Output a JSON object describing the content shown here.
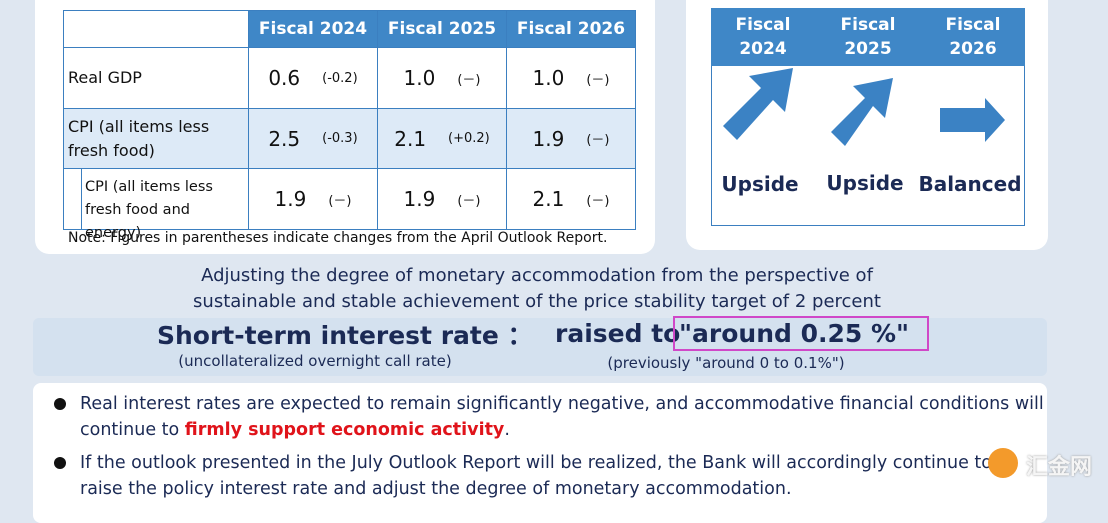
{
  "outlook_table": {
    "headers": [
      "Fiscal 2024",
      "Fiscal 2025",
      "Fiscal 2026"
    ],
    "rows": [
      {
        "label": "Real GDP",
        "cells": [
          [
            "0.6",
            "(-0.2)"
          ],
          [
            "1.0",
            "(－)"
          ],
          [
            "1.0",
            "(－)"
          ]
        ]
      },
      {
        "label": "CPI (all items less fresh food)",
        "cells": [
          [
            "2.5",
            "(-0.3)"
          ],
          [
            "2.1",
            "(+0.2)"
          ],
          [
            "1.9",
            "(－)"
          ]
        ]
      },
      {
        "label": "CPI (all items less fresh food and energy)",
        "cells": [
          [
            "1.9",
            "(－)"
          ],
          [
            "1.9",
            "(－)"
          ],
          [
            "2.1",
            "(－)"
          ]
        ]
      }
    ],
    "note": "Note: Figures in parentheses indicate changes from the April Outlook Report."
  },
  "risk_balance": {
    "headers": [
      "Fiscal 2024",
      "Fiscal 2025",
      "Fiscal 2026"
    ],
    "assessments": [
      "Upside",
      "Upside",
      "Balanced"
    ]
  },
  "policy_statement": [
    "Adjusting the degree of monetary accommodation from the perspective of",
    "sustainable and stable achievement of the price stability target of 2 percent"
  ],
  "interest_rate": {
    "title": "Short-term interest rate ：",
    "subtitle": "(uncollateralized overnight call rate)",
    "prefix": "raised to",
    "target": "\"around 0.25 %\"",
    "previous": "(previously \"around 0 to 0.1%\")"
  },
  "bullets": [
    {
      "line1": "Real interest rates are expected to remain significantly negative, and accommodative financial conditions will",
      "line2_start": "continue to ",
      "emphasis": "firmly support economic activity",
      "line2_end": "."
    },
    {
      "line1": "If the outlook presented in the July Outlook Report will be realized, the Bank will accordingly continue to",
      "line2": "raise the policy interest rate and adjust the degree of monetary accommodation."
    }
  ],
  "watermark": "汇金网"
}
